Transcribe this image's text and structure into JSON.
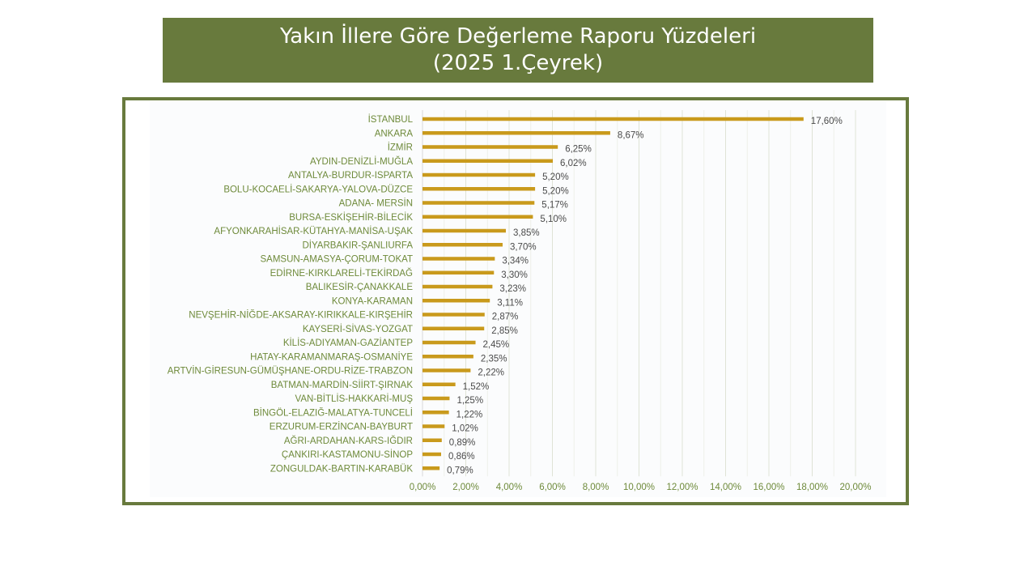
{
  "title": {
    "line1": "Yakın İllere Göre Değerleme Raporu Yüzdeleri",
    "line2": "(2025 1.Çeyrek)"
  },
  "colors": {
    "header_bg": "#687a3d",
    "frame": "#687a3d",
    "bar": "#c99a1c",
    "label": "#6e8a3a"
  },
  "chart_data": {
    "type": "bar",
    "orientation": "horizontal",
    "categories": [
      "İSTANBUL",
      "ANKARA",
      "İZMİR",
      "AYDIN-DENİZLİ-MUĞLA",
      "ANTALYA-BURDUR-ISPARTA",
      "BOLU-KOCAELİ-SAKARYA-YALOVA-DÜZCE",
      "ADANA- MERSİN",
      "BURSA-ESKİŞEHİR-BİLECİK",
      "AFYONKARAHİSAR-KÜTAHYA-MANİSA-UŞAK",
      "DİYARBAKIR-ŞANLIURFA",
      "SAMSUN-AMASYA-ÇORUM-TOKAT",
      "EDİRNE-KIRKLARELİ-TEKİRDAĞ",
      "BALIKESİR-ÇANAKKALE",
      "KONYA-KARAMAN",
      "NEVŞEHİR-NİĞDE-AKSARAY-KIRIKKALE-KIRŞEHİR",
      "KAYSERİ-SİVAS-YOZGAT",
      "KİLİS-ADIYAMAN-GAZİANTEP",
      "HATAY-KARAMANMARAŞ-OSMANİYE",
      "ARTVİN-GİRESUN-GÜMÜŞHANE-ORDU-RİZE-TRABZON",
      "BATMAN-MARDİN-SİİRT-ŞIRNAK",
      "VAN-BİTLİS-HAKKARİ-MUŞ",
      "BİNGÖL-ELAZIĞ-MALATYA-TUNCELİ",
      "ERZURUM-ERZİNCAN-BAYBURT",
      "AĞRI-ARDAHAN-KARS-IĞDIR",
      "ÇANKIRI-KASTAMONU-SİNOP",
      "ZONGULDAK-BARTIN-KARABÜK"
    ],
    "values": [
      17.6,
      8.67,
      6.25,
      6.02,
      5.2,
      5.2,
      5.17,
      5.1,
      3.85,
      3.7,
      3.34,
      3.3,
      3.23,
      3.11,
      2.87,
      2.85,
      2.45,
      2.35,
      2.22,
      1.52,
      1.25,
      1.22,
      1.02,
      0.89,
      0.86,
      0.79
    ],
    "value_labels": [
      "17,60%",
      "8,67%",
      "6,25%",
      "6,02%",
      "5,20%",
      "5,20%",
      "5,17%",
      "5,10%",
      "3,85%",
      "3,70%",
      "3,34%",
      "3,30%",
      "3,23%",
      "3,11%",
      "2,87%",
      "2,85%",
      "2,45%",
      "2,35%",
      "2,22%",
      "1,52%",
      "1,25%",
      "1,22%",
      "1,02%",
      "0,89%",
      "0,86%",
      "0,79%"
    ],
    "xlim": [
      0,
      20
    ],
    "xticks": [
      0,
      2,
      4,
      6,
      8,
      10,
      12,
      14,
      16,
      18,
      20
    ],
    "xtick_labels": [
      "0,00%",
      "2,00%",
      "4,00%",
      "6,00%",
      "8,00%",
      "10,00%",
      "12,00%",
      "14,00%",
      "16,00%",
      "18,00%",
      "20,00%"
    ],
    "grid": true,
    "legend": "none"
  }
}
